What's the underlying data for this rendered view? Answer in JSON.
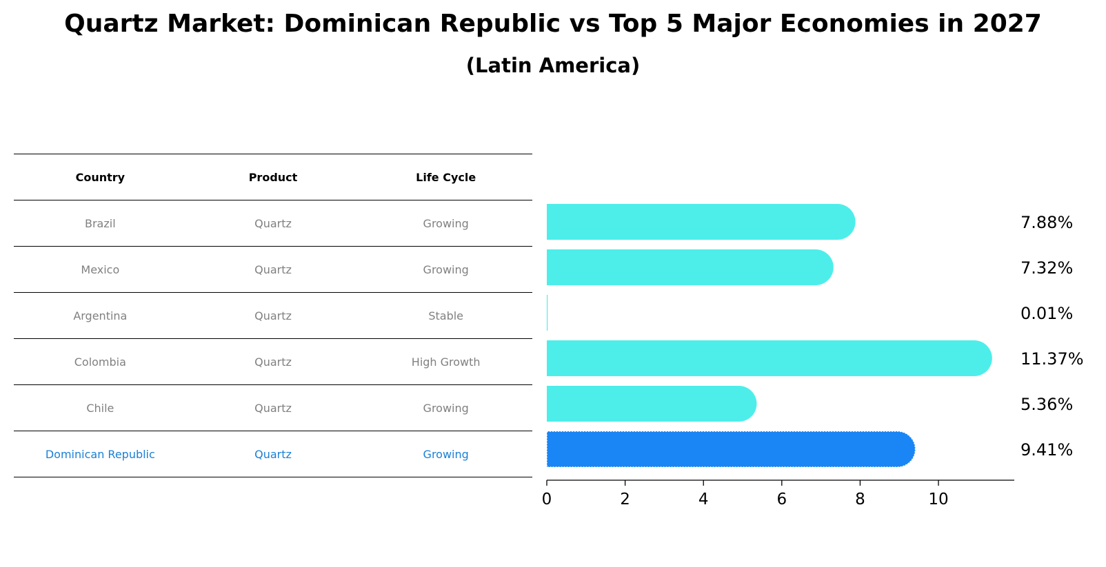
{
  "title": "Quartz Market: Dominican Republic vs Top 5 Major Economies in 2027",
  "subtitle": "(Latin America)",
  "table": {
    "headers": [
      "Country",
      "Product",
      "Life Cycle"
    ],
    "rows": [
      {
        "country": "Brazil",
        "product": "Quartz",
        "life_cycle": "Growing"
      },
      {
        "country": "Mexico",
        "product": "Quartz",
        "life_cycle": "Growing"
      },
      {
        "country": "Argentina",
        "product": "Quartz",
        "life_cycle": "Stable"
      },
      {
        "country": "Colombia",
        "product": "Quartz",
        "life_cycle": "High Growth"
      },
      {
        "country": "Chile",
        "product": "Quartz",
        "life_cycle": "Growing"
      },
      {
        "country": "Dominican Republic",
        "product": "Quartz",
        "life_cycle": "Growing"
      }
    ]
  },
  "chart_data": {
    "type": "bar",
    "orientation": "horizontal",
    "categories": [
      "Brazil",
      "Mexico",
      "Argentina",
      "Colombia",
      "Chile",
      "Dominican Republic"
    ],
    "values": [
      7.88,
      7.32,
      0.01,
      11.37,
      5.36,
      9.41
    ],
    "value_labels": [
      "7.88%",
      "7.32%",
      "0.01%",
      "11.37%",
      "5.36%",
      "9.41%"
    ],
    "highlight": "Dominican Republic",
    "xlim": [
      0,
      12
    ],
    "xticks": [
      0,
      2,
      4,
      6,
      8,
      10
    ],
    "colors": {
      "default": "#4deeea",
      "highlight": "#1a85f5"
    },
    "xlabel": "",
    "ylabel": ""
  }
}
